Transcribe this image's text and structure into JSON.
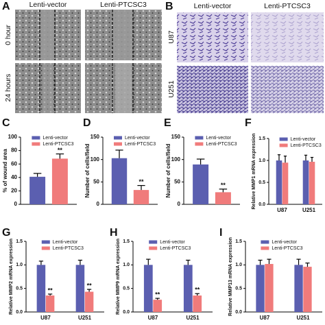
{
  "panel_a": {
    "label": "A",
    "columns": [
      "Lenti-vector",
      "Lenti-PTCSC3"
    ],
    "rows": [
      "0 hour",
      "24 hours"
    ]
  },
  "panel_b": {
    "label": "B",
    "columns": [
      "Lenti-vector",
      "Lenti-PTCSC3"
    ],
    "rows": [
      "U87",
      "U251"
    ]
  },
  "chart_data": [
    {
      "type": "bar",
      "label": "C",
      "ylabel": "% of wound area",
      "ylim": [
        0,
        100
      ],
      "yticks": [
        0,
        20,
        40,
        60,
        80,
        100
      ],
      "series": [
        {
          "name": "Lenti-vector",
          "color": "#5b5fb0",
          "values": [
            41
          ],
          "errors": [
            5
          ]
        },
        {
          "name": "Lenti-PTCSC3",
          "color": "#f07b7b",
          "values": [
            68
          ],
          "errors": [
            7
          ],
          "annotations": [
            "**"
          ]
        }
      ]
    },
    {
      "type": "bar",
      "label": "D",
      "ylabel": "Number of cells/field",
      "ylim": [
        0,
        150
      ],
      "yticks": [
        0,
        50,
        100,
        150
      ],
      "series": [
        {
          "name": "Lenti-vector",
          "color": "#5b5fb0",
          "values": [
            103
          ],
          "errors": [
            18
          ]
        },
        {
          "name": "Lenti-PTCSC3",
          "color": "#f07b7b",
          "values": [
            32
          ],
          "errors": [
            10
          ],
          "annotations": [
            "**"
          ]
        }
      ]
    },
    {
      "type": "bar",
      "label": "E",
      "ylabel": "Number of cells/field",
      "ylim": [
        0,
        150
      ],
      "yticks": [
        0,
        50,
        100,
        150
      ],
      "series": [
        {
          "name": "Lenti-vector",
          "color": "#5b5fb0",
          "values": [
            89
          ],
          "errors": [
            12
          ]
        },
        {
          "name": "Lenti-PTCSC3",
          "color": "#f07b7b",
          "values": [
            27
          ],
          "errors": [
            7
          ],
          "annotations": [
            "**"
          ]
        }
      ]
    },
    {
      "type": "bar",
      "label": "F",
      "ylabel": "Relative MMP1 mRNA expression",
      "categories": [
        "U87",
        "U251"
      ],
      "ylim": [
        0,
        1.5
      ],
      "yticks": [
        {
          "value": 0,
          "label": "0.0"
        },
        0.5,
        {
          "value": 1,
          "label": "1.0"
        },
        1.5
      ],
      "series": [
        {
          "name": "Lenti-vector",
          "color": "#5b5fb0",
          "values": [
            1.0,
            1.0
          ],
          "errors": [
            0.13,
            0.12
          ]
        },
        {
          "name": "Lenti-PTCSC3",
          "color": "#f07b7b",
          "values": [
            0.95,
            0.97
          ],
          "errors": [
            0.15,
            0.1
          ]
        }
      ]
    },
    {
      "type": "bar",
      "label": "G",
      "ylabel": "Relative MMP2 mRNA expression",
      "categories": [
        "U87",
        "U251"
      ],
      "ylim": [
        0,
        1.5
      ],
      "yticks": [
        {
          "value": 0,
          "label": "0.0"
        },
        0.5,
        {
          "value": 1,
          "label": "1.0"
        },
        1.5
      ],
      "series": [
        {
          "name": "Lenti-vector",
          "color": "#5b5fb0",
          "values": [
            1.0,
            1.0
          ],
          "errors": [
            0.08,
            0.1
          ]
        },
        {
          "name": "Lenti-PTCSC3",
          "color": "#f07b7b",
          "values": [
            0.35,
            0.43
          ],
          "errors": [
            0.03,
            0.05
          ],
          "annotations": [
            "**",
            "**"
          ]
        }
      ]
    },
    {
      "type": "bar",
      "label": "H",
      "ylabel": "Relative MMP9 mRNA expression",
      "categories": [
        "U87",
        "U251"
      ],
      "ylim": [
        0,
        1.5
      ],
      "yticks": [
        {
          "value": 0,
          "label": "0.0"
        },
        0.5,
        {
          "value": 1,
          "label": "1.0"
        },
        1.5
      ],
      "series": [
        {
          "name": "Lenti-vector",
          "color": "#5b5fb0",
          "values": [
            1.0,
            1.0
          ],
          "errors": [
            0.12,
            0.1
          ]
        },
        {
          "name": "Lenti-PTCSC3",
          "color": "#f07b7b",
          "values": [
            0.26,
            0.35
          ],
          "errors": [
            0.03,
            0.04
          ],
          "annotations": [
            "**",
            "**"
          ]
        }
      ]
    },
    {
      "type": "bar",
      "label": "I",
      "ylabel": "Relative MMP13 mRNA expression",
      "categories": [
        "U87",
        "U251"
      ],
      "ylim": [
        0,
        1.5
      ],
      "yticks": [
        {
          "value": 0,
          "label": "0.0"
        },
        0.5,
        {
          "value": 1,
          "label": "1.0"
        },
        1.5
      ],
      "series": [
        {
          "name": "Lenti-vector",
          "color": "#5b5fb0",
          "values": [
            1.0,
            1.0
          ],
          "errors": [
            0.1,
            0.12
          ]
        },
        {
          "name": "Lenti-PTCSC3",
          "color": "#f07b7b",
          "values": [
            1.02,
            0.96
          ],
          "errors": [
            0.1,
            0.08
          ]
        }
      ]
    }
  ]
}
